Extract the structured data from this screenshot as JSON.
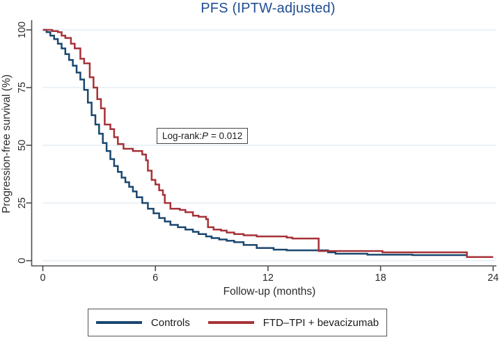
{
  "title": "PFS (IPTW-adjusted)",
  "annotation": {
    "label": "Log-rank:",
    "p_symbol": "P",
    "value": " = 0.012"
  },
  "colors": {
    "controls_line": "#1a476f",
    "treatment_line": "#a63238",
    "title_text": "#204d93",
    "axis": "#4d4d4d",
    "tick_text": "#2b2b2b",
    "gridline": "#dfeaf2"
  },
  "legend": {
    "items": [
      {
        "label": "Controls",
        "color": "#1a476f"
      },
      {
        "label": "FTD–TPI + bevacizumab",
        "color": "#a63238"
      }
    ]
  },
  "chart_data": {
    "type": "line",
    "subtype": "kaplan-meier-step",
    "title": "PFS (IPTW-adjusted)",
    "xlabel": "Follow-up (months)",
    "ylabel": "Progression-free survival (%)",
    "xlim": [
      0,
      24
    ],
    "ylim": [
      0,
      100
    ],
    "x_ticks": [
      0,
      6,
      12,
      18,
      24
    ],
    "y_ticks": [
      0,
      25,
      50,
      75,
      100
    ],
    "grid": "horizontal",
    "legend_position": "bottom",
    "annotation_text": "Log-rank: P = 0.012",
    "series": [
      {
        "name": "Controls",
        "color": "#1a476f",
        "points": [
          [
            0,
            100
          ],
          [
            0.2,
            99
          ],
          [
            0.4,
            97.5
          ],
          [
            0.6,
            96
          ],
          [
            0.8,
            94
          ],
          [
            1.0,
            92
          ],
          [
            1.2,
            89.5
          ],
          [
            1.4,
            87
          ],
          [
            1.6,
            84.5
          ],
          [
            1.8,
            81.5
          ],
          [
            2.0,
            78.5
          ],
          [
            2.2,
            74
          ],
          [
            2.4,
            68.5
          ],
          [
            2.6,
            63
          ],
          [
            2.8,
            59
          ],
          [
            3.0,
            55
          ],
          [
            3.2,
            51
          ],
          [
            3.4,
            47.5
          ],
          [
            3.6,
            44
          ],
          [
            3.8,
            41
          ],
          [
            4.0,
            38.5
          ],
          [
            4.2,
            36
          ],
          [
            4.4,
            34
          ],
          [
            4.6,
            32
          ],
          [
            4.8,
            30
          ],
          [
            5.0,
            27.5
          ],
          [
            5.3,
            25
          ],
          [
            5.6,
            22.5
          ],
          [
            5.9,
            20.5
          ],
          [
            6.2,
            18.5
          ],
          [
            6.5,
            17
          ],
          [
            6.8,
            15.5
          ],
          [
            7.2,
            14.5
          ],
          [
            7.6,
            13.5
          ],
          [
            8.0,
            12.5
          ],
          [
            8.3,
            11.5
          ],
          [
            8.7,
            10.5
          ],
          [
            9.0,
            9.8
          ],
          [
            9.4,
            9.2
          ],
          [
            9.8,
            8.6
          ],
          [
            10.2,
            8
          ],
          [
            10.7,
            6.8
          ],
          [
            11.4,
            5.5
          ],
          [
            12.3,
            4.8
          ],
          [
            13.0,
            4.5
          ],
          [
            15.2,
            3.6
          ],
          [
            15.6,
            3.0
          ],
          [
            17.3,
            2.6
          ],
          [
            19.7,
            2.4
          ],
          [
            22.6,
            2.4
          ]
        ]
      },
      {
        "name": "FTD–TPI + bevacizumab",
        "color": "#a63238",
        "points": [
          [
            0,
            100
          ],
          [
            0.5,
            99.5
          ],
          [
            0.8,
            99
          ],
          [
            1.0,
            97.5
          ],
          [
            1.2,
            96.5
          ],
          [
            1.5,
            94
          ],
          [
            1.7,
            92
          ],
          [
            2.0,
            87.5
          ],
          [
            2.2,
            85.5
          ],
          [
            2.5,
            79.5
          ],
          [
            2.7,
            75
          ],
          [
            2.9,
            70
          ],
          [
            3.1,
            66
          ],
          [
            3.3,
            59
          ],
          [
            3.6,
            57
          ],
          [
            3.8,
            53.5
          ],
          [
            4.0,
            50.5
          ],
          [
            4.3,
            48.5
          ],
          [
            4.8,
            47.5
          ],
          [
            5.3,
            46
          ],
          [
            5.5,
            43.5
          ],
          [
            5.6,
            39
          ],
          [
            5.8,
            35
          ],
          [
            6.0,
            33
          ],
          [
            6.2,
            30.5
          ],
          [
            6.4,
            28.5
          ],
          [
            6.5,
            25
          ],
          [
            6.8,
            22.5
          ],
          [
            7.3,
            22
          ],
          [
            7.6,
            21
          ],
          [
            8.0,
            19.5
          ],
          [
            8.3,
            19
          ],
          [
            8.7,
            18
          ],
          [
            8.8,
            14.5
          ],
          [
            9.1,
            13.5
          ],
          [
            9.5,
            13
          ],
          [
            9.8,
            12.2
          ],
          [
            10.2,
            11.5
          ],
          [
            10.7,
            11
          ],
          [
            11.4,
            10.5
          ],
          [
            13.0,
            10
          ],
          [
            13.3,
            9.6
          ],
          [
            14.7,
            4.2
          ],
          [
            18.1,
            3.6
          ],
          [
            22.6,
            1.6
          ],
          [
            24,
            1.6
          ]
        ]
      }
    ]
  }
}
